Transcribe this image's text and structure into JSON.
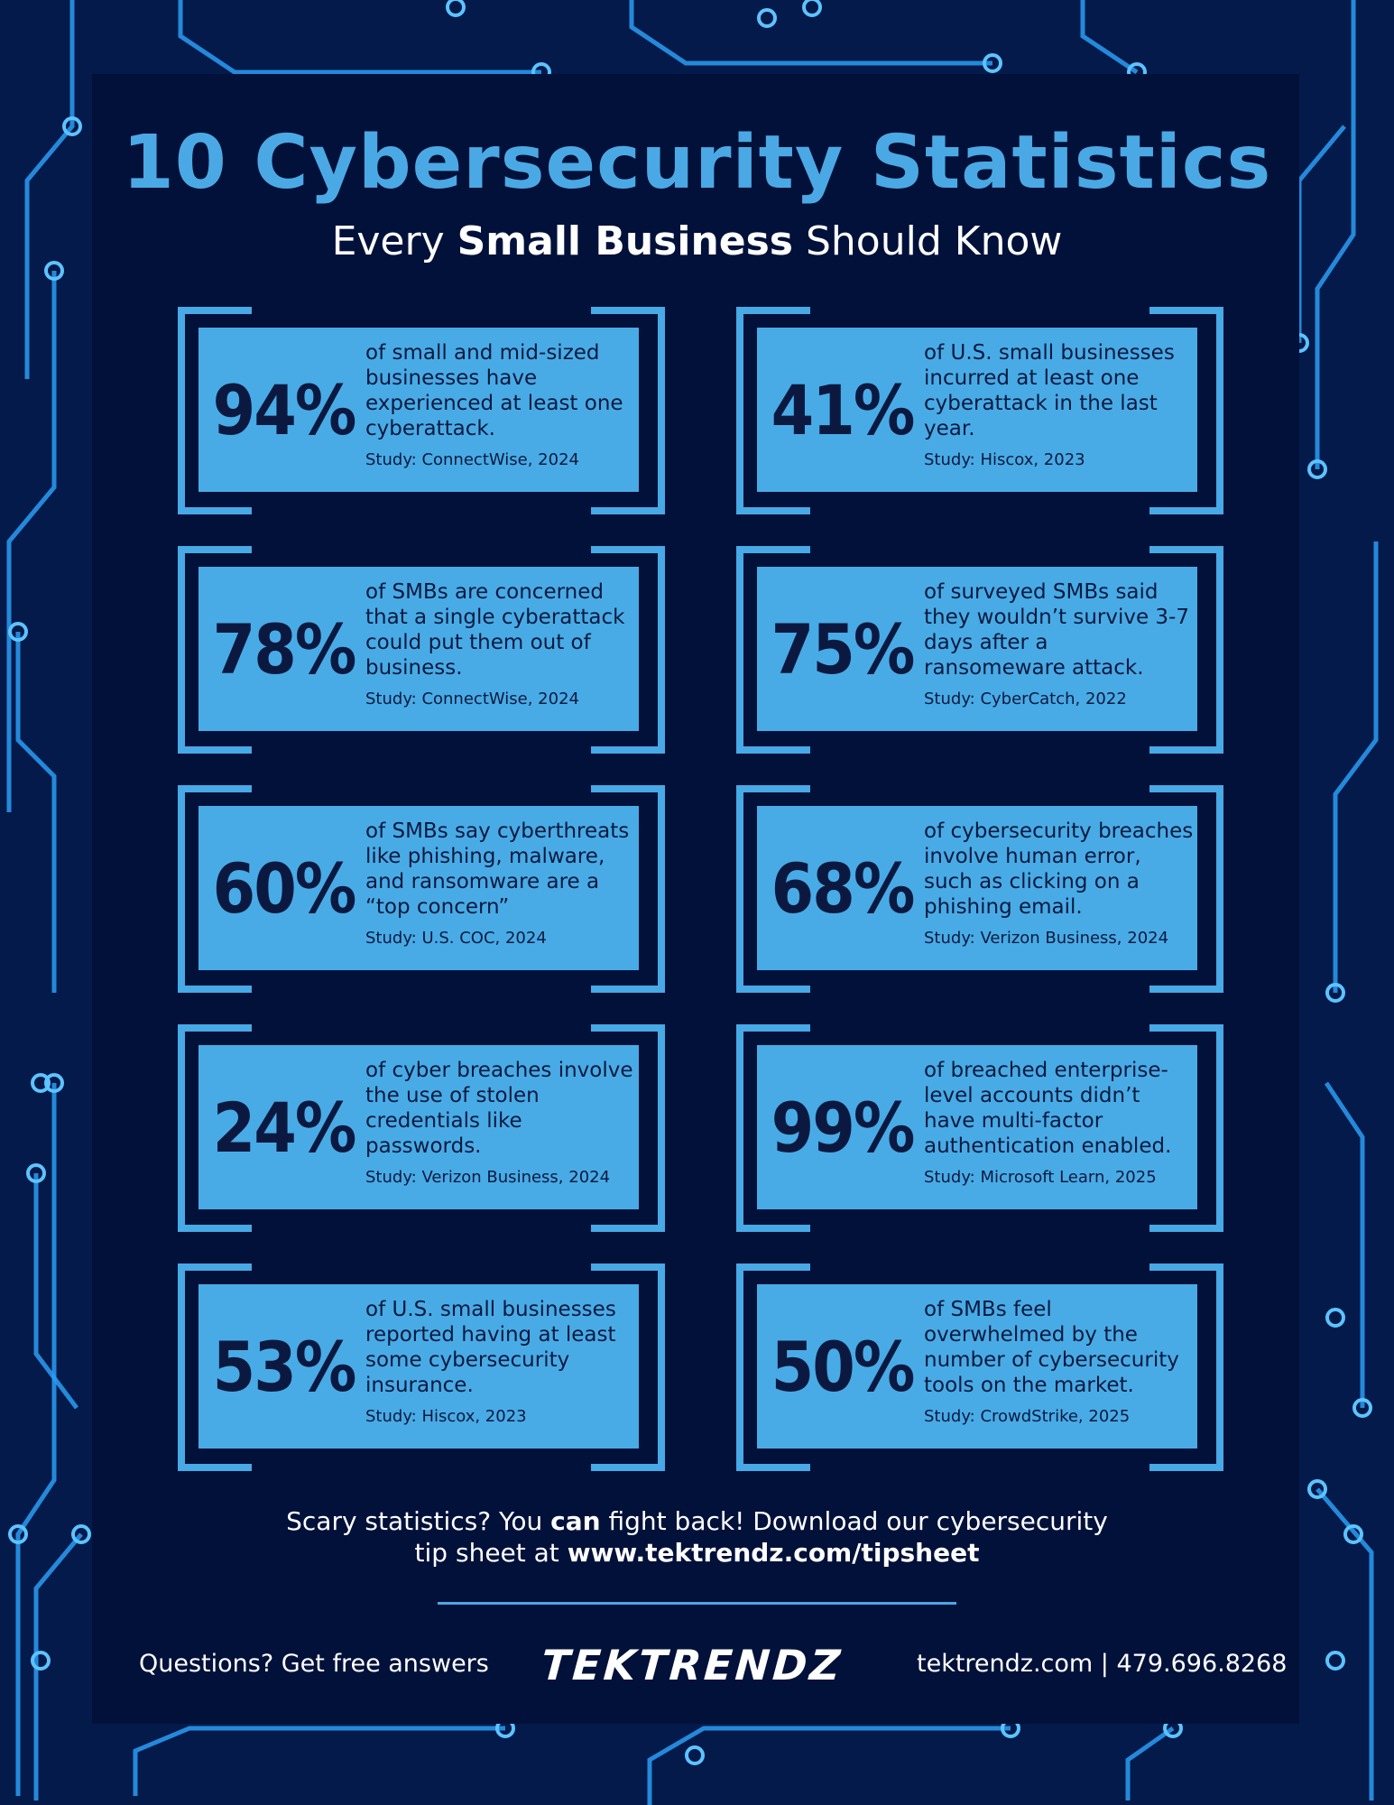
{
  "header": {
    "title": "10 Cybersecurity Statistics",
    "subtitle_pre": "Every ",
    "subtitle_bold": "Small Business",
    "subtitle_post": " Should Know"
  },
  "stats": [
    {
      "value": "94%",
      "text": "of small and mid-sized businesses have experienced at least one cyberattack.",
      "source": "Study: ConnectWise, 2024"
    },
    {
      "value": "41%",
      "text": "of U.S. small businesses incurred at least one cyberattack in the last year.",
      "source": "Study: Hiscox, 2023"
    },
    {
      "value": "78%",
      "text": "of SMBs are concerned that a single cyberattack could put them out of business.",
      "source": "Study: ConnectWise, 2024"
    },
    {
      "value": "75%",
      "text": "of surveyed SMBs said they wouldn’t survive 3-7 days after a ransomeware attack.",
      "source": "Study: CyberCatch, 2022"
    },
    {
      "value": "60%",
      "text": "of SMBs say cyberthreats like phishing, malware, and ransomware are a “top concern”",
      "source": "Study: U.S. COC, 2024"
    },
    {
      "value": "68%",
      "text": "of cybersecurity breaches involve human error, such as clicking on a phishing email.",
      "source": "Study: Verizon Business, 2024"
    },
    {
      "value": "24%",
      "text": "of cyber breaches involve the use of stolen credentials like passwords.",
      "source": "Study: Verizon Business, 2024"
    },
    {
      "value": "99%",
      "text": "of breached enterprise-level accounts didn’t have multi-factor authentication enabled.",
      "source": "Study: Microsoft Learn, 2025"
    },
    {
      "value": "53%",
      "text": "of U.S. small businesses reported having at least some cybersecurity insurance.",
      "source": "Study: Hiscox, 2023"
    },
    {
      "value": "50%",
      "text": "of SMBs feel overwhelmed by the number of cybersecurity tools on the market.",
      "source": "Study: CrowdStrike, 2025"
    }
  ],
  "cta": {
    "line1_pre": "Scary statistics? You ",
    "line1_bold": "can",
    "line1_post": " fight back! Download our cybersecurity",
    "line2_pre": "tip sheet at ",
    "line2_bold": "www.tektrendz.com/tipsheet"
  },
  "footer": {
    "left": "Questions? Get free answers",
    "logo": "TEKTRENDZ",
    "right": "tektrendz.com | 479.696.8268"
  },
  "colors": {
    "background": "#031a4a",
    "panel": "#02113a",
    "accent": "#48abe6",
    "text_dark": "#0b1a3f"
  }
}
